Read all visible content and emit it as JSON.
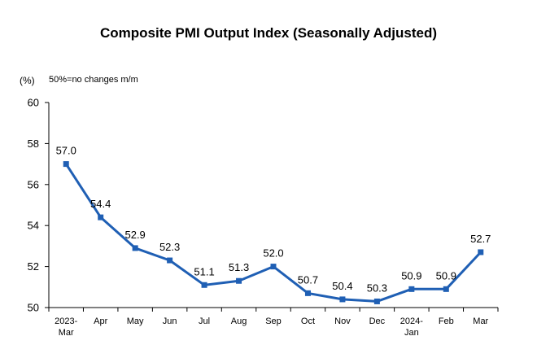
{
  "chart_data": {
    "type": "line",
    "title": "Composite PMI Output Index (Seasonally Adjusted)",
    "unit_label": "(%)",
    "note": "50%=no changes m/m",
    "categories": [
      [
        "2023-",
        "Mar"
      ],
      [
        "Apr"
      ],
      [
        "May"
      ],
      [
        "Jun"
      ],
      [
        "Jul"
      ],
      [
        "Aug"
      ],
      [
        "Sep"
      ],
      [
        "Oct"
      ],
      [
        "Nov"
      ],
      [
        "Dec"
      ],
      [
        "2024-",
        "Jan"
      ],
      [
        "Feb"
      ],
      [
        "Mar"
      ]
    ],
    "series": [
      {
        "values": [
          57.0,
          54.4,
          52.9,
          52.3,
          51.1,
          51.3,
          52.0,
          50.7,
          50.4,
          50.3,
          50.9,
          50.9,
          52.7
        ]
      }
    ],
    "data_labels": [
      "57.0",
      "54.4",
      "52.9",
      "52.3",
      "51.1",
      "51.3",
      "52.0",
      "50.7",
      "50.4",
      "50.3",
      "50.9",
      "50.9",
      "52.7"
    ],
    "ylim": [
      50,
      60
    ],
    "yticks": [
      50,
      52,
      54,
      56,
      58,
      60
    ],
    "line_color": "#1f5fb4",
    "grid": false
  }
}
